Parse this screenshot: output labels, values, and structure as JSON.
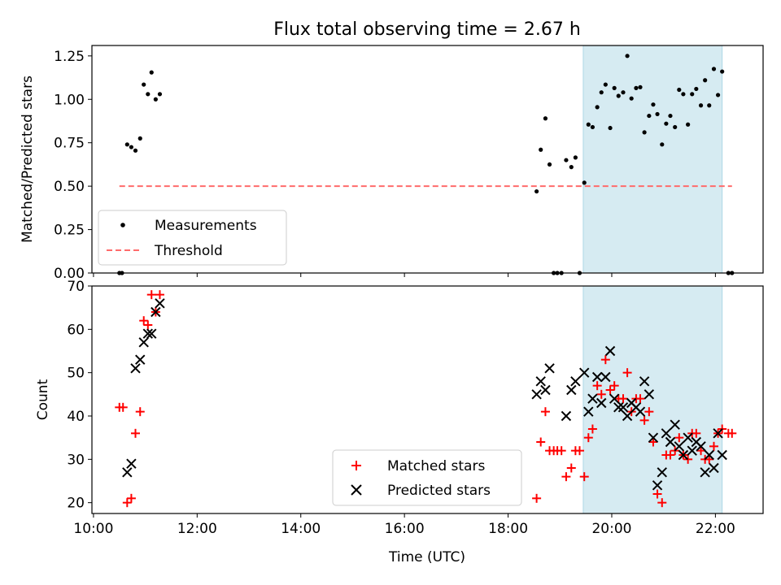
{
  "chart_data": [
    {
      "type": "scatter",
      "title": "Flux total observing time = 2.67 h",
      "xlabel": "",
      "ylabel": "Matched/Predicted stars",
      "xlim": [
        9.97,
        22.92
      ],
      "ylim": [
        0,
        1.31
      ],
      "yticks": [
        "0.00",
        "0.25",
        "0.50",
        "0.75",
        "1.00",
        "1.25"
      ],
      "ytick_values": [
        0,
        0.25,
        0.5,
        0.75,
        1.0,
        1.25
      ],
      "shaded_region": {
        "x": [
          19.45,
          22.13
        ],
        "color": "#add8e6"
      },
      "grid": false,
      "legend_position": "lower-left",
      "series": [
        {
          "name": "Measurements",
          "marker": "dot",
          "color": "#000000",
          "points": [
            [
              10.5,
              0.0
            ],
            [
              10.55,
              0.0
            ],
            [
              10.65,
              0.74
            ],
            [
              10.73,
              0.725
            ],
            [
              10.81,
              0.705
            ],
            [
              10.9,
              0.775
            ],
            [
              10.97,
              1.085
            ],
            [
              11.05,
              1.03
            ],
            [
              11.12,
              1.155
            ],
            [
              11.2,
              1.0
            ],
            [
              11.28,
              1.03
            ],
            [
              18.55,
              0.47
            ],
            [
              18.63,
              0.71
            ],
            [
              18.72,
              0.89
            ],
            [
              18.8,
              0.625
            ],
            [
              18.88,
              0.0
            ],
            [
              18.95,
              0.0
            ],
            [
              19.03,
              0.0
            ],
            [
              19.12,
              0.65
            ],
            [
              19.22,
              0.61
            ],
            [
              19.3,
              0.665
            ],
            [
              19.38,
              0.0
            ],
            [
              19.47,
              0.52
            ],
            [
              19.55,
              0.855
            ],
            [
              19.63,
              0.84
            ],
            [
              19.72,
              0.955
            ],
            [
              19.8,
              1.04
            ],
            [
              19.88,
              1.085
            ],
            [
              19.97,
              0.835
            ],
            [
              20.05,
              1.065
            ],
            [
              20.13,
              1.02
            ],
            [
              20.22,
              1.04
            ],
            [
              20.3,
              1.25
            ],
            [
              20.38,
              1.005
            ],
            [
              20.47,
              1.065
            ],
            [
              20.55,
              1.07
            ],
            [
              20.63,
              0.81
            ],
            [
              20.72,
              0.905
            ],
            [
              20.8,
              0.97
            ],
            [
              20.88,
              0.915
            ],
            [
              20.97,
              0.74
            ],
            [
              21.05,
              0.86
            ],
            [
              21.13,
              0.905
            ],
            [
              21.22,
              0.84
            ],
            [
              21.3,
              1.055
            ],
            [
              21.38,
              1.03
            ],
            [
              21.47,
              0.855
            ],
            [
              21.55,
              1.03
            ],
            [
              21.63,
              1.06
            ],
            [
              21.72,
              0.965
            ],
            [
              21.8,
              1.11
            ],
            [
              21.88,
              0.965
            ],
            [
              21.97,
              1.175
            ],
            [
              22.05,
              1.025
            ],
            [
              22.13,
              1.16
            ],
            [
              22.25,
              0.0
            ],
            [
              22.32,
              0.0
            ]
          ]
        },
        {
          "name": "Threshold",
          "marker": "dashed-line",
          "color": "#ff6b6b",
          "points": [
            [
              10.5,
              0.5
            ],
            [
              22.32,
              0.5
            ]
          ]
        }
      ]
    },
    {
      "type": "scatter",
      "title": "",
      "xlabel": "Time (UTC)",
      "ylabel": "Count",
      "xlim": [
        9.97,
        22.92
      ],
      "ylim": [
        17.5,
        70
      ],
      "xticks": [
        "10:00",
        "12:00",
        "14:00",
        "16:00",
        "18:00",
        "20:00",
        "22:00"
      ],
      "xtick_values": [
        10,
        12,
        14,
        16,
        18,
        20,
        22
      ],
      "yticks": [
        "20",
        "30",
        "40",
        "50",
        "60",
        "70"
      ],
      "ytick_values": [
        20,
        30,
        40,
        50,
        60,
        70
      ],
      "shaded_region": {
        "x": [
          19.45,
          22.13
        ],
        "color": "#add8e6"
      },
      "grid": false,
      "legend_position": "lower-center",
      "series": [
        {
          "name": "Matched stars",
          "marker": "plus",
          "color": "#ff0000",
          "points": [
            [
              10.5,
              42
            ],
            [
              10.57,
              42
            ],
            [
              10.65,
              20
            ],
            [
              10.73,
              21
            ],
            [
              10.81,
              36
            ],
            [
              10.9,
              41
            ],
            [
              10.97,
              62
            ],
            [
              11.05,
              61
            ],
            [
              11.12,
              68
            ],
            [
              11.2,
              64
            ],
            [
              11.28,
              68
            ],
            [
              18.55,
              21
            ],
            [
              18.63,
              34
            ],
            [
              18.72,
              41
            ],
            [
              18.8,
              32
            ],
            [
              18.88,
              32
            ],
            [
              18.95,
              32
            ],
            [
              19.03,
              32
            ],
            [
              19.12,
              26
            ],
            [
              19.22,
              28
            ],
            [
              19.3,
              32
            ],
            [
              19.38,
              32
            ],
            [
              19.47,
              26
            ],
            [
              19.55,
              35
            ],
            [
              19.63,
              37
            ],
            [
              19.72,
              47
            ],
            [
              19.8,
              45
            ],
            [
              19.88,
              53
            ],
            [
              19.97,
              46
            ],
            [
              20.05,
              47
            ],
            [
              20.13,
              44
            ],
            [
              20.22,
              44
            ],
            [
              20.3,
              50
            ],
            [
              20.38,
              41
            ],
            [
              20.47,
              44
            ],
            [
              20.55,
              44
            ],
            [
              20.63,
              39
            ],
            [
              20.72,
              41
            ],
            [
              20.8,
              34
            ],
            [
              20.88,
              22
            ],
            [
              20.97,
              20
            ],
            [
              21.05,
              31
            ],
            [
              21.13,
              31
            ],
            [
              21.22,
              32
            ],
            [
              21.3,
              35
            ],
            [
              21.38,
              31
            ],
            [
              21.47,
              30
            ],
            [
              21.55,
              36
            ],
            [
              21.63,
              36
            ],
            [
              21.72,
              32
            ],
            [
              21.8,
              30
            ],
            [
              21.88,
              30
            ],
            [
              21.97,
              33
            ],
            [
              22.05,
              36
            ],
            [
              22.13,
              37
            ],
            [
              22.25,
              36
            ],
            [
              22.32,
              36
            ]
          ]
        },
        {
          "name": "Predicted stars",
          "marker": "x",
          "color": "#000000",
          "points": [
            [
              10.65,
              27
            ],
            [
              10.73,
              29
            ],
            [
              10.81,
              51
            ],
            [
              10.9,
              53
            ],
            [
              10.97,
              57
            ],
            [
              11.05,
              59
            ],
            [
              11.12,
              59
            ],
            [
              11.2,
              64
            ],
            [
              11.28,
              66
            ],
            [
              18.55,
              45
            ],
            [
              18.63,
              48
            ],
            [
              18.72,
              46
            ],
            [
              18.8,
              51
            ],
            [
              19.12,
              40
            ],
            [
              19.22,
              46
            ],
            [
              19.3,
              48
            ],
            [
              19.47,
              50
            ],
            [
              19.55,
              41
            ],
            [
              19.63,
              44
            ],
            [
              19.72,
              49
            ],
            [
              19.8,
              43
            ],
            [
              19.88,
              49
            ],
            [
              19.97,
              55
            ],
            [
              20.05,
              44
            ],
            [
              20.13,
              42
            ],
            [
              20.22,
              42
            ],
            [
              20.3,
              40
            ],
            [
              20.38,
              43
            ],
            [
              20.47,
              42
            ],
            [
              20.55,
              41
            ],
            [
              20.63,
              48
            ],
            [
              20.72,
              45
            ],
            [
              20.8,
              35
            ],
            [
              20.88,
              24
            ],
            [
              20.97,
              27
            ],
            [
              21.05,
              36
            ],
            [
              21.13,
              34
            ],
            [
              21.22,
              38
            ],
            [
              21.3,
              33
            ],
            [
              21.38,
              31
            ],
            [
              21.47,
              35
            ],
            [
              21.55,
              32
            ],
            [
              21.63,
              34
            ],
            [
              21.72,
              33
            ],
            [
              21.8,
              27
            ],
            [
              21.88,
              31
            ],
            [
              21.97,
              28
            ],
            [
              22.05,
              36
            ],
            [
              22.13,
              31
            ]
          ]
        }
      ]
    }
  ]
}
